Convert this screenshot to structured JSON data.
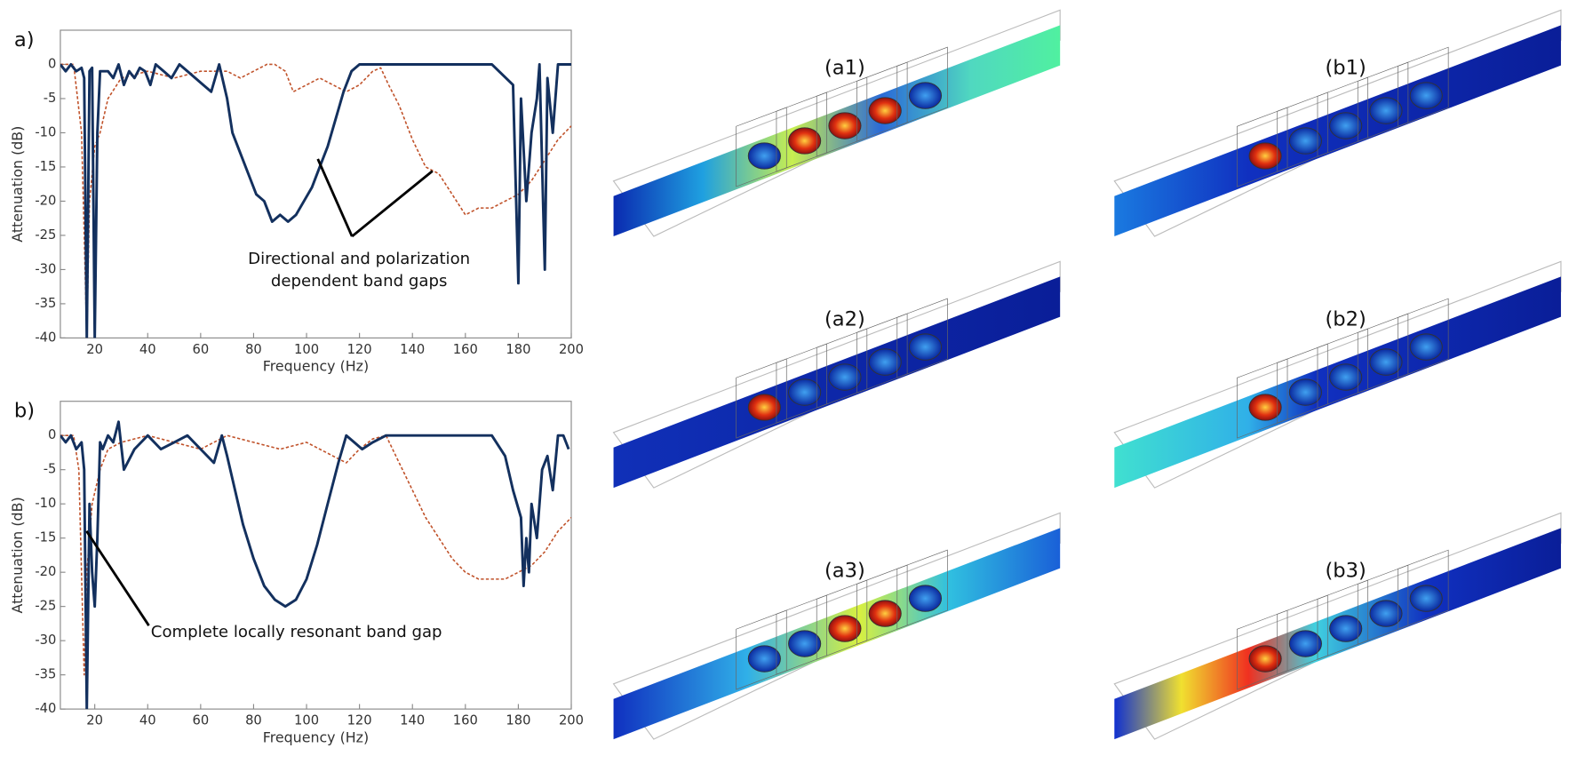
{
  "chart_data": [
    {
      "type": "line",
      "panel_label": "a)",
      "xlabel": "Frequency (Hz)",
      "ylabel": "Attenuation (dB)",
      "xlim": [
        7,
        200
      ],
      "ylim": [
        -40,
        5
      ],
      "xticks": [
        20,
        40,
        60,
        80,
        100,
        120,
        140,
        160,
        180,
        200
      ],
      "yticks": [
        0,
        -5,
        -10,
        -15,
        -20,
        -25,
        -30,
        -35,
        -40
      ],
      "annotation": [
        "Directional and polarization",
        "dependent band gaps"
      ],
      "series": [
        {
          "color": "#13305e",
          "dash": false,
          "x": [
            7,
            9,
            11,
            13,
            15,
            16,
            17,
            18,
            19,
            20,
            21,
            22,
            25,
            27,
            29,
            31,
            33,
            35,
            37,
            39,
            41,
            43,
            46,
            49,
            52,
            55,
            58,
            61,
            64,
            67,
            70,
            72,
            75,
            78,
            81,
            84,
            87,
            90,
            93,
            96,
            99,
            102,
            105,
            108,
            111,
            114,
            117,
            120,
            130,
            140,
            150,
            160,
            170,
            178,
            180,
            181,
            183,
            185,
            187,
            188,
            190,
            191,
            193,
            195,
            197,
            200
          ],
          "values": [
            0,
            -1,
            0,
            -1,
            -0.5,
            -2,
            -40,
            -1,
            -0.5,
            -40,
            -10,
            -1,
            -1,
            -2,
            0,
            -3,
            -1,
            -2,
            -0.5,
            -1,
            -3,
            0,
            -1,
            -2,
            0,
            -1,
            -2,
            -3,
            -4,
            0,
            -5,
            -10,
            -13,
            -16,
            -19,
            -20,
            -23,
            -22,
            -23,
            -22,
            -20,
            -18,
            -15,
            -12,
            -8,
            -4,
            -1,
            0,
            0,
            0,
            0,
            0,
            0,
            -3,
            -32,
            -5,
            -20,
            -10,
            -5,
            0,
            -30,
            -2,
            -10,
            0,
            0,
            0
          ]
        },
        {
          "color": "#c0522a",
          "dash": true,
          "x": [
            7,
            12,
            15,
            17,
            18,
            20,
            22,
            25,
            30,
            40,
            50,
            60,
            70,
            75,
            80,
            85,
            88,
            92,
            95,
            100,
            105,
            110,
            115,
            120,
            125,
            128,
            131,
            135,
            140,
            145,
            150,
            155,
            160,
            165,
            170,
            175,
            180,
            185,
            190,
            195,
            200
          ],
          "values": [
            0,
            0,
            -10,
            -40,
            -20,
            -12,
            -10,
            -5,
            -2,
            -1,
            -2,
            -1,
            -1,
            -2,
            -1,
            0,
            0,
            -1,
            -4,
            -3,
            -2,
            -3,
            -4,
            -3,
            -1,
            -0.5,
            -3,
            -6,
            -11,
            -15,
            -16,
            -19,
            -22,
            -21,
            -21,
            -20,
            -19,
            -17,
            -14,
            -11,
            -9
          ]
        }
      ]
    },
    {
      "type": "line",
      "panel_label": "b)",
      "xlabel": "Frequency (Hz)",
      "ylabel": "Attenuation (dB)",
      "xlim": [
        7,
        200
      ],
      "ylim": [
        -40,
        5
      ],
      "xticks": [
        20,
        40,
        60,
        80,
        100,
        120,
        140,
        160,
        180,
        200
      ],
      "yticks": [
        0,
        -5,
        -10,
        -15,
        -20,
        -25,
        -30,
        -35,
        -40
      ],
      "annotation": [
        "Complete locally resonant band gap"
      ],
      "series": [
        {
          "color": "#13305e",
          "dash": false,
          "x": [
            7,
            9,
            11,
            13,
            15,
            16,
            17,
            18,
            19,
            20,
            21,
            22,
            23,
            25,
            27,
            29,
            31,
            35,
            40,
            45,
            50,
            55,
            60,
            65,
            68,
            70,
            73,
            76,
            80,
            84,
            88,
            92,
            96,
            100,
            104,
            108,
            112,
            115,
            118,
            121,
            125,
            130,
            140,
            150,
            160,
            170,
            175,
            178,
            181,
            182,
            183,
            184,
            185,
            187,
            189,
            191,
            193,
            195,
            197,
            199
          ],
          "values": [
            0,
            -1,
            0,
            -2,
            -1,
            -5,
            -40,
            -10,
            -20,
            -25,
            -15,
            -1,
            -2,
            0,
            -1,
            2,
            -5,
            -2,
            0,
            -2,
            -1,
            0,
            -2,
            -4,
            0,
            -3,
            -8,
            -13,
            -18,
            -22,
            -24,
            -25,
            -24,
            -21,
            -16,
            -10,
            -4,
            0,
            -1,
            -2,
            -1,
            0,
            0,
            0,
            0,
            0,
            -3,
            -8,
            -12,
            -22,
            -15,
            -20,
            -10,
            -15,
            -5,
            -3,
            -8,
            0,
            0,
            -2
          ]
        },
        {
          "color": "#c0522a",
          "dash": true,
          "x": [
            7,
            12,
            14,
            16,
            17,
            19,
            22,
            25,
            30,
            40,
            50,
            60,
            65,
            70,
            80,
            90,
            100,
            110,
            115,
            120,
            125,
            130,
            135,
            140,
            145,
            150,
            155,
            160,
            165,
            170,
            175,
            180,
            185,
            190,
            195,
            200
          ],
          "values": [
            0,
            0,
            -5,
            -35,
            -20,
            -10,
            -5,
            -2,
            -1,
            0,
            -1,
            -2,
            -1,
            0,
            -1,
            -2,
            -1,
            -3,
            -4,
            -2,
            -0.5,
            0,
            -4,
            -8,
            -12,
            -15,
            -18,
            -20,
            -21,
            -21,
            -21,
            -20,
            -19,
            -17,
            -14,
            -12
          ]
        }
      ]
    }
  ],
  "panels": [
    "(a1)",
    "(b1)",
    "(a2)",
    "(b2)",
    "(a3)",
    "(b3)"
  ]
}
